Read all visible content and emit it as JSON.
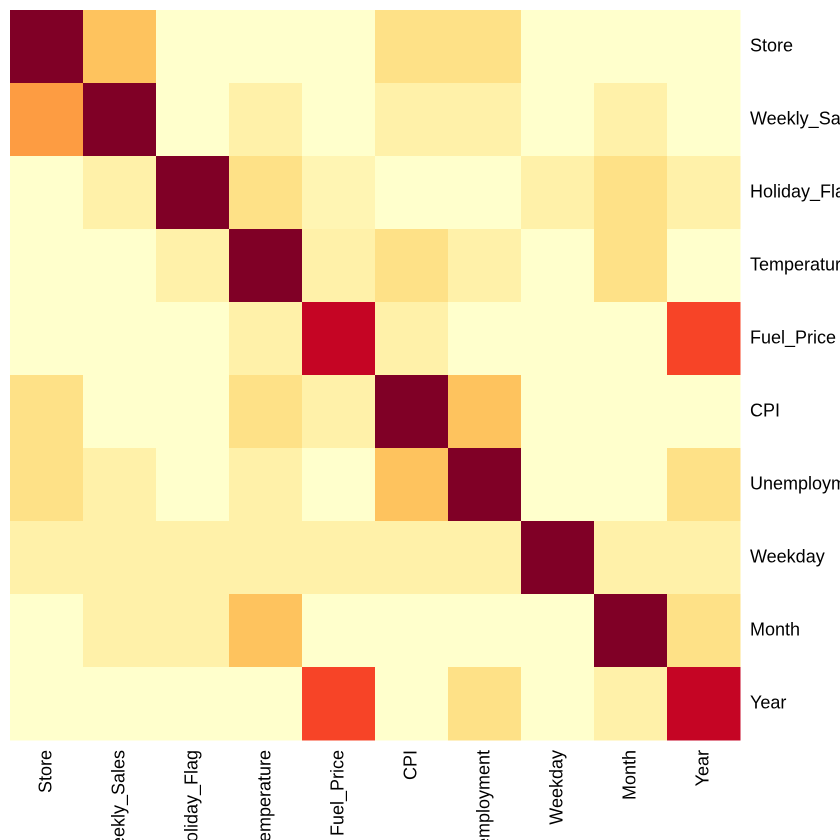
{
  "chart_data": {
    "type": "heatmap",
    "title": "",
    "xlabel": "",
    "ylabel": "",
    "legend": "none",
    "grid": false,
    "value_range": [
      0,
      1
    ],
    "row_labels": [
      "Store",
      "Weekly_Sales",
      "Holiday_Flag",
      "Temperature",
      "Fuel_Price",
      "CPI",
      "Unemployment",
      "Weekday",
      "Month",
      "Year"
    ],
    "col_labels": [
      "Store",
      "Weekly_Sales",
      "Holiday_Flag",
      "Temperature",
      "Fuel_Price",
      "CPI",
      "Unemployment",
      "Weekday",
      "Month",
      "Year"
    ],
    "values": [
      [
        1.0,
        0.32,
        0.0,
        0.0,
        0.0,
        0.2,
        0.2,
        0.0,
        0.0,
        0.0
      ],
      [
        0.45,
        1.0,
        0.0,
        0.1,
        0.0,
        0.1,
        0.1,
        0.0,
        0.1,
        0.0
      ],
      [
        0.0,
        0.1,
        1.0,
        0.2,
        0.07,
        0.0,
        0.0,
        0.1,
        0.2,
        0.1
      ],
      [
        0.0,
        0.0,
        0.1,
        1.0,
        0.1,
        0.2,
        0.1,
        0.0,
        0.2,
        0.0
      ],
      [
        0.0,
        0.0,
        0.0,
        0.1,
        0.85,
        0.1,
        0.0,
        0.0,
        0.0,
        0.65
      ],
      [
        0.2,
        0.0,
        0.0,
        0.2,
        0.1,
        1.0,
        0.32,
        0.0,
        0.0,
        0.0
      ],
      [
        0.2,
        0.1,
        0.0,
        0.1,
        0.0,
        0.32,
        1.0,
        0.0,
        0.0,
        0.2
      ],
      [
        0.1,
        0.1,
        0.1,
        0.1,
        0.1,
        0.1,
        0.1,
        1.0,
        0.1,
        0.1
      ],
      [
        0.0,
        0.1,
        0.1,
        0.32,
        0.0,
        0.0,
        0.0,
        0.0,
        1.0,
        0.2
      ],
      [
        0.0,
        0.0,
        0.0,
        0.0,
        0.65,
        0.0,
        0.2,
        0.0,
        0.1,
        0.85
      ]
    ],
    "colormap": [
      "#ffffcc",
      "#ffeda0",
      "#fed976",
      "#feb24c",
      "#fd8d3c",
      "#fc4e2a",
      "#e31a1c",
      "#bd0026",
      "#800026"
    ]
  }
}
